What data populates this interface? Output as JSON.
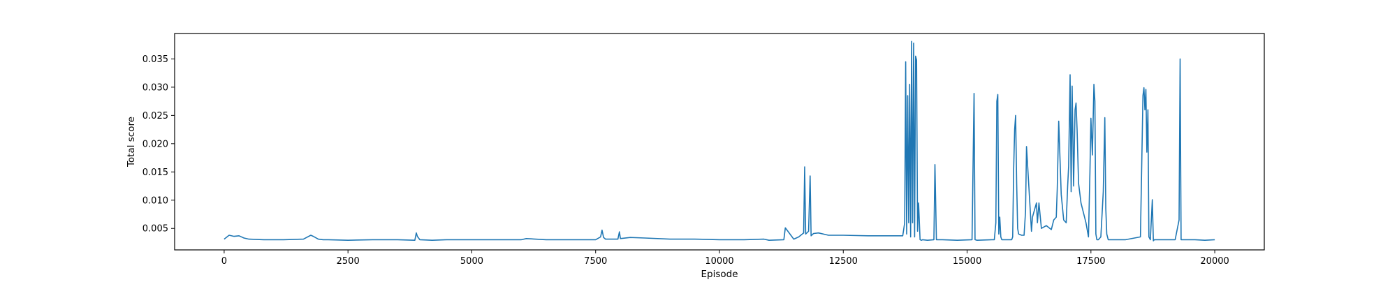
{
  "chart_data": {
    "type": "line",
    "title": "",
    "xlabel": "Episode",
    "ylabel": "Total score",
    "xlim": [
      -1000,
      21000
    ],
    "ylim": [
      0.0012,
      0.0395
    ],
    "xticks": [
      0,
      2500,
      5000,
      7500,
      10000,
      12500,
      15000,
      17500,
      20000
    ],
    "xtick_labels": [
      "0",
      "2500",
      "5000",
      "7500",
      "10000",
      "12500",
      "15000",
      "17500",
      "20000"
    ],
    "yticks": [
      0.005,
      0.01,
      0.015,
      0.02,
      0.025,
      0.03,
      0.035
    ],
    "ytick_labels": [
      "0.005",
      "0.010",
      "0.015",
      "0.020",
      "0.025",
      "0.030",
      "0.035"
    ],
    "grid": false,
    "legend": "none",
    "series": [
      {
        "color": "#1f77b4",
        "x": [
          0,
          100,
          200,
          300,
          400,
          500,
          800,
          1200,
          1600,
          1750,
          1800,
          1900,
          2000,
          2100,
          2500,
          3000,
          3500,
          3850,
          3880,
          3900,
          3950,
          4200,
          4500,
          5000,
          5500,
          6000,
          6100,
          6500,
          7000,
          7500,
          7600,
          7630,
          7660,
          7700,
          7950,
          7980,
          8000,
          8200,
          8500,
          9000,
          9500,
          10000,
          10500,
          10900,
          11000,
          11300,
          11330,
          11500,
          11600,
          11700,
          11720,
          11740,
          11800,
          11830,
          11850,
          11900,
          12000,
          12200,
          12500,
          13000,
          13500,
          13700,
          13740,
          13760,
          13780,
          13800,
          13820,
          13840,
          13860,
          13880,
          13900,
          13920,
          13940,
          13960,
          13980,
          14000,
          14020,
          14050,
          14080,
          14100,
          14200,
          14330,
          14350,
          14380,
          14500,
          14800,
          15100,
          15140,
          15160,
          15200,
          15500,
          15550,
          15580,
          15600,
          15620,
          15640,
          15660,
          15680,
          15700,
          15900,
          15920,
          15940,
          15960,
          15980,
          16000,
          16020,
          16040,
          16100,
          16150,
          16180,
          16200,
          16300,
          16320,
          16400,
          16420,
          16450,
          16500,
          16600,
          16700,
          16750,
          16800,
          16820,
          16850,
          16900,
          16950,
          17000,
          17030,
          17050,
          17080,
          17100,
          17120,
          17150,
          17180,
          17200,
          17220,
          17250,
          17300,
          17400,
          17450,
          17480,
          17500,
          17530,
          17560,
          17580,
          17600,
          17620,
          17650,
          17700,
          17750,
          17780,
          17800,
          17820,
          17850,
          17900,
          18000,
          18200,
          18500,
          18550,
          18570,
          18590,
          18610,
          18630,
          18650,
          18670,
          18700,
          18740,
          18760,
          18780,
          18900,
          19000,
          19100,
          19200,
          19280,
          19300,
          19320,
          19400,
          19600,
          19800,
          20000
        ],
        "y": [
          0.0031,
          0.0038,
          0.0036,
          0.0037,
          0.0033,
          0.0031,
          0.003,
          0.003,
          0.0031,
          0.0038,
          0.0036,
          0.0031,
          0.003,
          0.003,
          0.0029,
          0.003,
          0.003,
          0.0029,
          0.0042,
          0.0036,
          0.003,
          0.0029,
          0.003,
          0.003,
          0.003,
          0.003,
          0.0032,
          0.003,
          0.003,
          0.003,
          0.0035,
          0.0047,
          0.0034,
          0.0031,
          0.0031,
          0.0044,
          0.0032,
          0.0034,
          0.0033,
          0.0031,
          0.0031,
          0.003,
          0.003,
          0.0031,
          0.0029,
          0.003,
          0.0051,
          0.0031,
          0.0035,
          0.0042,
          0.0159,
          0.004,
          0.0045,
          0.0143,
          0.0037,
          0.0041,
          0.0042,
          0.0038,
          0.0038,
          0.0037,
          0.0037,
          0.0037,
          0.006,
          0.0345,
          0.004,
          0.0285,
          0.006,
          0.0305,
          0.0035,
          0.0381,
          0.006,
          0.0378,
          0.0035,
          0.0355,
          0.0348,
          0.0045,
          0.0095,
          0.003,
          0.0029,
          0.003,
          0.0029,
          0.003,
          0.0163,
          0.003,
          0.003,
          0.0029,
          0.003,
          0.0289,
          0.003,
          0.0029,
          0.003,
          0.003,
          0.006,
          0.0275,
          0.0287,
          0.004,
          0.007,
          0.0035,
          0.003,
          0.003,
          0.0035,
          0.0155,
          0.0225,
          0.025,
          0.013,
          0.005,
          0.004,
          0.0038,
          0.0038,
          0.008,
          0.0195,
          0.0045,
          0.007,
          0.0095,
          0.006,
          0.0095,
          0.005,
          0.0055,
          0.0048,
          0.0065,
          0.007,
          0.012,
          0.024,
          0.011,
          0.0065,
          0.006,
          0.0125,
          0.016,
          0.0322,
          0.0115,
          0.0302,
          0.0125,
          0.026,
          0.0272,
          0.0225,
          0.013,
          0.0095,
          0.006,
          0.0035,
          0.015,
          0.0245,
          0.018,
          0.0305,
          0.0275,
          0.004,
          0.003,
          0.003,
          0.0035,
          0.0115,
          0.0246,
          0.0085,
          0.004,
          0.003,
          0.003,
          0.003,
          0.003,
          0.0035,
          0.0285,
          0.0299,
          0.026,
          0.0296,
          0.0185,
          0.026,
          0.0035,
          0.003,
          0.0101,
          0.0028,
          0.003,
          0.003,
          0.003,
          0.003,
          0.003,
          0.0065,
          0.035,
          0.003,
          0.003,
          0.003,
          0.0029,
          0.003
        ]
      }
    ]
  }
}
